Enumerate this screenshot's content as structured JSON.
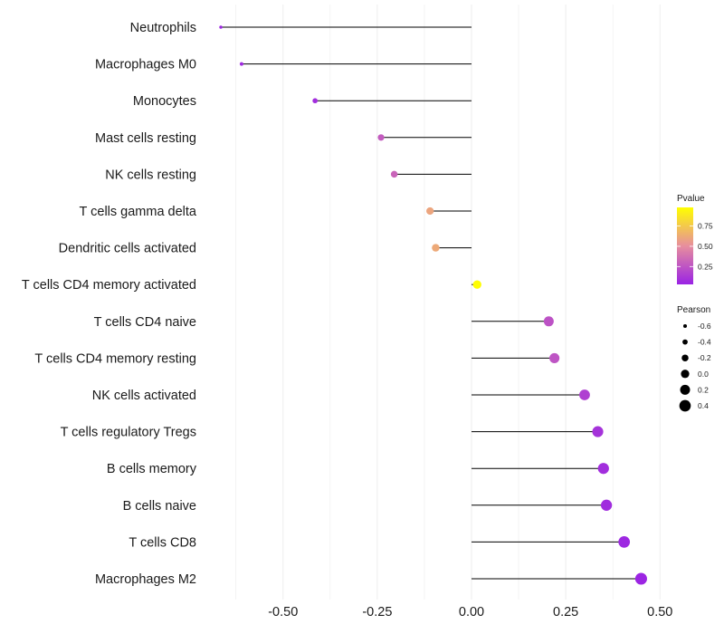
{
  "chart_data": {
    "type": "lollipop",
    "title": "",
    "xlabel": "",
    "ylabel": "",
    "xlim": [
      -0.71,
      0.56
    ],
    "x_ticks": [
      -0.5,
      -0.25,
      0.0,
      0.25,
      0.5
    ],
    "x_tick_labels": [
      "-0.50",
      "-0.25",
      "0.00",
      "0.25",
      "0.50"
    ],
    "grid": true,
    "categories": [
      "Neutrophils",
      "Macrophages M0",
      "Monocytes",
      "Mast cells resting",
      "NK cells resting",
      "T cells gamma delta",
      "Dendritic cells activated",
      "T cells CD4 memory activated",
      "T cells CD4 naive",
      "T cells CD4 memory resting",
      "NK cells activated",
      "T cells regulatory  Tregs",
      "B cells memory",
      "B cells naive",
      "T cells CD8",
      "Macrophages M2"
    ],
    "pearson": [
      -0.665,
      -0.61,
      -0.415,
      -0.24,
      -0.205,
      -0.11,
      -0.095,
      0.015,
      0.205,
      0.22,
      0.3,
      0.335,
      0.35,
      0.358,
      0.405,
      0.45
    ],
    "pvalue": [
      0.05,
      0.06,
      0.08,
      0.28,
      0.32,
      0.6,
      0.62,
      0.97,
      0.24,
      0.25,
      0.16,
      0.1,
      0.08,
      0.07,
      0.05,
      0.04
    ],
    "legend": {
      "color_title": "Pvalue",
      "color_ticks": [
        0.75,
        0.5,
        0.25
      ],
      "color_tick_labels": [
        "0.75",
        "0.50",
        "0.25"
      ],
      "color_low": "#9A23E4",
      "color_mid": "#E78E9E",
      "color_high": "#FFFF00",
      "size_title": "Pearson",
      "size_values": [
        -0.6,
        -0.4,
        -0.2,
        0.0,
        0.2,
        0.4
      ],
      "size_labels": [
        "-0.6",
        "-0.4",
        "-0.2",
        "0.0",
        "0.2",
        "0.4"
      ],
      "placement": "right"
    }
  }
}
